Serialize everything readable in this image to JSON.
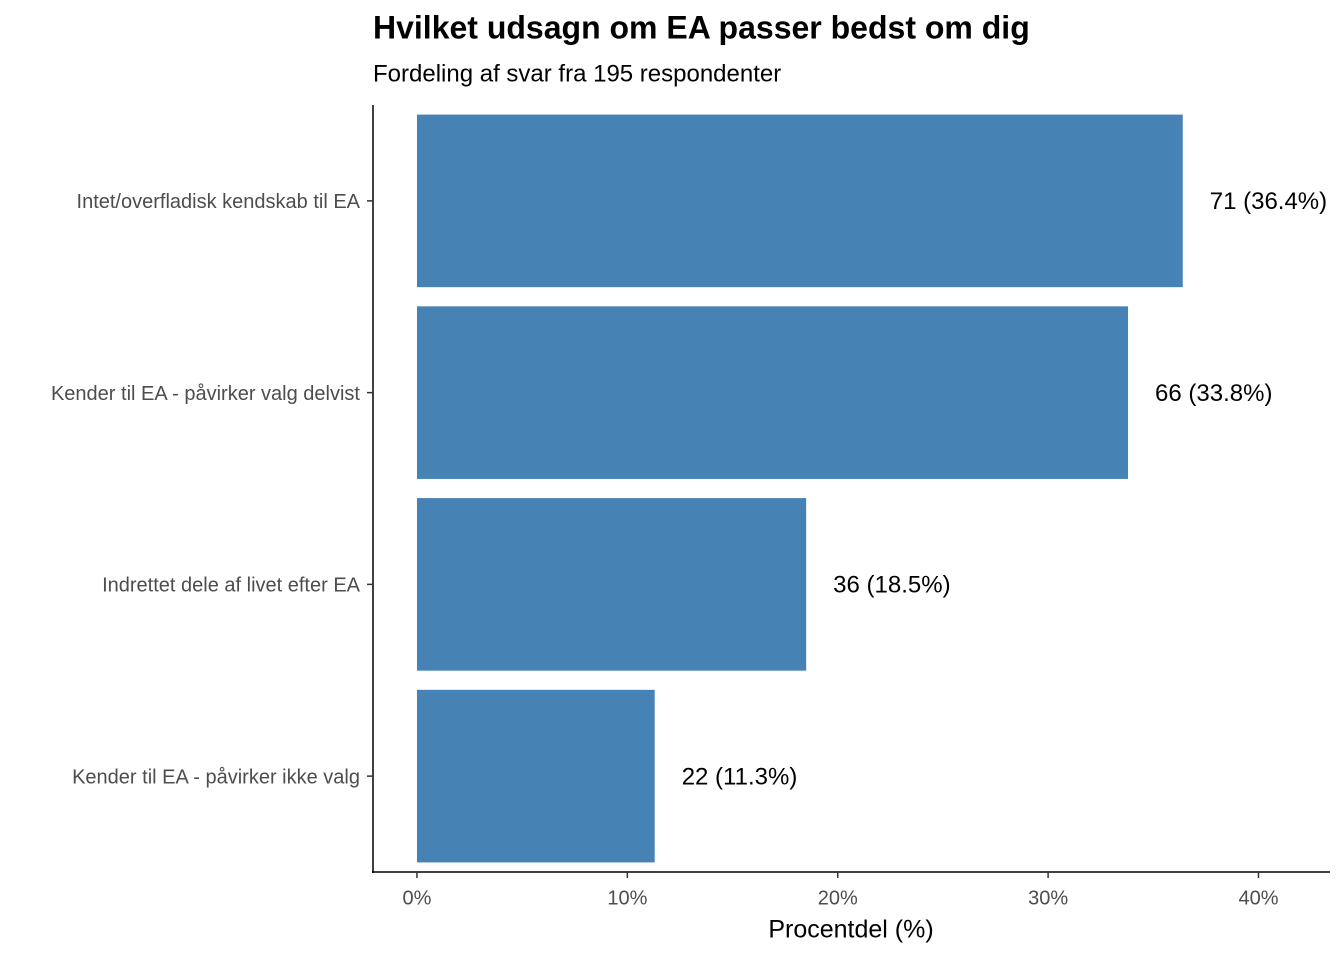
{
  "chart_data": {
    "type": "bar",
    "orientation": "horizontal",
    "title": "Hvilket udsagn om EA passer bedst om dig",
    "subtitle": "Fordeling af svar fra 195 respondenter",
    "x_label": "Procentdel (%)",
    "categories": [
      "Intet/overfladisk kendskab til EA",
      "Kender til EA - påvirker valg delvist",
      "Indrettet dele af livet efter EA",
      "Kender til EA - påvirker ikke valg"
    ],
    "values": [
      36.4,
      33.8,
      18.5,
      11.3
    ],
    "value_labels": [
      "71 (36.4%)",
      "66 (33.8%)",
      "36 (18.5%)",
      "22 (11.3%)"
    ],
    "color": "#4682b4",
    "xlim": [
      -2.09,
      43.4
    ],
    "xticks": [
      {
        "value": 0,
        "label": "0%"
      },
      {
        "value": 10,
        "label": "10%"
      },
      {
        "value": 20,
        "label": "20%"
      },
      {
        "value": 30,
        "label": "30%"
      },
      {
        "value": 40,
        "label": "40%"
      }
    ],
    "grid": false
  }
}
